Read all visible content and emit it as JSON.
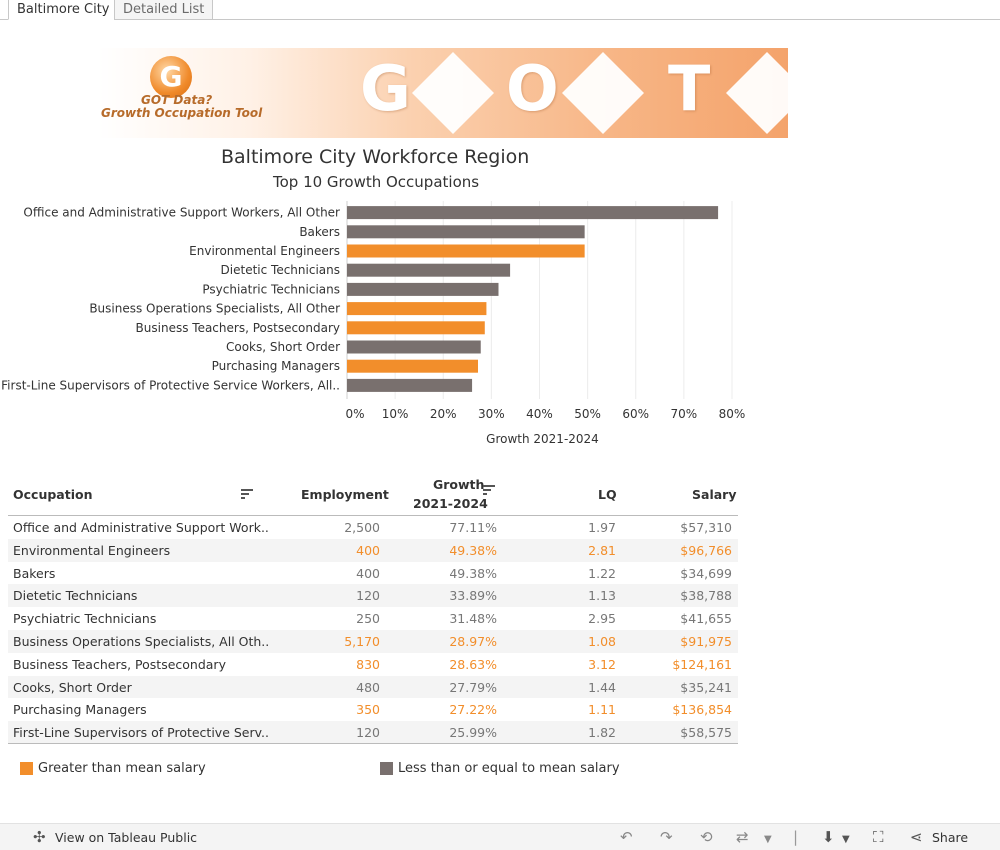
{
  "tabs": [
    "Baltimore City",
    "Detailed List"
  ],
  "banner": {
    "logo_line1": "GOT Data?",
    "logo_line2": "Growth Occupation Tool",
    "letters": [
      "G",
      "O",
      "T"
    ]
  },
  "title": "Baltimore City Workforce Region",
  "subtitle": "Top 10 Growth Occupations",
  "colors": {
    "greater": "#f28e2b",
    "less": "#79706e"
  },
  "chart_data": {
    "type": "bar",
    "orientation": "horizontal",
    "xlabel": "Growth 2021-2024",
    "xlim": [
      0,
      80
    ],
    "xticks": [
      "0%",
      "10%",
      "20%",
      "30%",
      "40%",
      "50%",
      "60%",
      "70%",
      "80%"
    ],
    "categories": [
      "Office and Administrative Support Workers, All Other",
      "Bakers",
      "Environmental Engineers",
      "Dietetic Technicians",
      "Psychiatric Technicians",
      "Business Operations Specialists, All Other",
      "Business Teachers, Postsecondary",
      "Cooks, Short Order",
      "Purchasing Managers",
      "First-Line Supervisors of Protective Service Workers, All.."
    ],
    "values": [
      77.11,
      49.38,
      49.38,
      33.89,
      31.48,
      28.97,
      28.63,
      27.79,
      27.22,
      25.99
    ],
    "salary_group": [
      "less",
      "less",
      "greater",
      "less",
      "less",
      "greater",
      "greater",
      "less",
      "greater",
      "less"
    ],
    "grid": true
  },
  "table": {
    "headers": {
      "occupation": "Occupation",
      "employment": "Employment",
      "growth1": "Growth",
      "growth2": "2021-2024",
      "lq": "LQ",
      "salary": "Salary"
    },
    "rows": [
      {
        "occupation": "Office and Administrative Support Work..",
        "employment": "2,500",
        "growth": "77.11%",
        "lq": "1.97",
        "salary": "$57,310",
        "hi": false
      },
      {
        "occupation": "Environmental Engineers",
        "employment": "400",
        "growth": "49.38%",
        "lq": "2.81",
        "salary": "$96,766",
        "hi": true
      },
      {
        "occupation": "Bakers",
        "employment": "400",
        "growth": "49.38%",
        "lq": "1.22",
        "salary": "$34,699",
        "hi": false
      },
      {
        "occupation": "Dietetic Technicians",
        "employment": "120",
        "growth": "33.89%",
        "lq": "1.13",
        "salary": "$38,788",
        "hi": false
      },
      {
        "occupation": "Psychiatric Technicians",
        "employment": "250",
        "growth": "31.48%",
        "lq": "2.95",
        "salary": "$41,655",
        "hi": false
      },
      {
        "occupation": "Business Operations Specialists, All Oth..",
        "employment": "5,170",
        "growth": "28.97%",
        "lq": "1.08",
        "salary": "$91,975",
        "hi": true
      },
      {
        "occupation": "Business Teachers, Postsecondary",
        "employment": "830",
        "growth": "28.63%",
        "lq": "3.12",
        "salary": "$124,161",
        "hi": true
      },
      {
        "occupation": "Cooks, Short Order",
        "employment": "480",
        "growth": "27.79%",
        "lq": "1.44",
        "salary": "$35,241",
        "hi": false
      },
      {
        "occupation": "Purchasing Managers",
        "employment": "350",
        "growth": "27.22%",
        "lq": "1.11",
        "salary": "$136,854",
        "hi": true
      },
      {
        "occupation": "First-Line Supervisors of Protective Serv..",
        "employment": "120",
        "growth": "25.99%",
        "lq": "1.82",
        "salary": "$58,575",
        "hi": false
      }
    ]
  },
  "legend": {
    "greater": "Greater than mean salary",
    "less": "Less than or equal to mean salary"
  },
  "footer": {
    "view_label": "View on Tableau Public",
    "share_label": "Share"
  }
}
